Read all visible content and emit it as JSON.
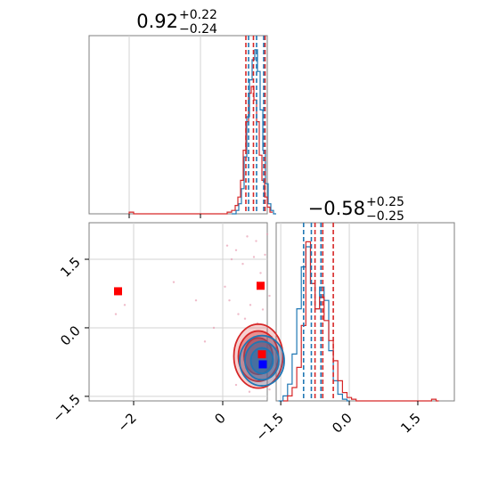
{
  "chart_data": {
    "type": "corner",
    "colors": {
      "series_a": "#1f77b4",
      "series_b": "#d62728",
      "marker_b": "#ff0000",
      "marker_a": "#0000ff"
    },
    "panels": [
      {
        "id": "p0_hist",
        "type": "histogram",
        "title_value": "0.92",
        "title_plus": "+0.22",
        "title_minus": "−0.24",
        "xlim": [
          -3.0,
          1.0
        ],
        "x_ticks": [],
        "y_ticks": [],
        "series": [
          {
            "color": "#1f77b4",
            "quantiles": [
              0.58,
              0.76,
              0.92
            ],
            "bins": [
              [
                0.2,
                0.0
              ],
              [
                0.3,
                0.02
              ],
              [
                0.36,
                0.06
              ],
              [
                0.42,
                0.15
              ],
              [
                0.48,
                0.34
              ],
              [
                0.54,
                0.58
              ],
              [
                0.6,
                0.8
              ],
              [
                0.66,
                0.92
              ],
              [
                0.72,
                0.98
              ],
              [
                0.78,
                0.85
              ],
              [
                0.84,
                0.62
              ],
              [
                0.9,
                0.38
              ],
              [
                0.96,
                0.18
              ],
              [
                1.02,
                0.06
              ],
              [
                1.08,
                0.02
              ],
              [
                1.14,
                0.0
              ]
            ]
          },
          {
            "color": "#d62728",
            "quantiles": [
              0.52,
              0.69,
              0.95
            ],
            "bins": [
              [
                -2.1,
                0.01
              ],
              [
                -2.0,
                0.0
              ],
              [
                0.0,
                0.0
              ],
              [
                0.1,
                0.01
              ],
              [
                0.2,
                0.02
              ],
              [
                0.28,
                0.05
              ],
              [
                0.34,
                0.1
              ],
              [
                0.4,
                0.2
              ],
              [
                0.46,
                0.38
              ],
              [
                0.52,
                0.55
              ],
              [
                0.58,
                0.72
              ],
              [
                0.64,
                0.76
              ],
              [
                0.7,
                0.68
              ],
              [
                0.76,
                0.55
              ],
              [
                0.82,
                0.35
              ],
              [
                0.88,
                0.2
              ],
              [
                0.94,
                0.1
              ],
              [
                1.0,
                0.04
              ],
              [
                1.06,
                0.01
              ]
            ]
          }
        ]
      },
      {
        "id": "p1_hist",
        "type": "histogram",
        "title_value": "−0.58",
        "title_plus": "+0.25",
        "title_minus": "−0.25",
        "xlim": [
          -1.6,
          2.3
        ],
        "x_ticks": [
          {
            "value": -1.5,
            "label": "−1.5"
          },
          {
            "value": 0.0,
            "label": "0.0"
          },
          {
            "value": 1.5,
            "label": "1.5"
          }
        ],
        "y_ticks": [],
        "series": [
          {
            "color": "#1f77b4",
            "quantiles": [
              -1.0,
              -0.83,
              -0.62
            ],
            "bins": [
              [
                -1.55,
                0.0
              ],
              [
                -1.45,
                0.03
              ],
              [
                -1.35,
                0.1
              ],
              [
                -1.25,
                0.28
              ],
              [
                -1.15,
                0.55
              ],
              [
                -1.05,
                0.8
              ],
              [
                -0.95,
                0.92
              ],
              [
                -0.85,
                0.7
              ],
              [
                -0.75,
                0.55
              ],
              [
                -0.65,
                0.68
              ],
              [
                -0.55,
                0.6
              ],
              [
                -0.45,
                0.3
              ],
              [
                -0.35,
                0.12
              ],
              [
                -0.25,
                0.04
              ],
              [
                -0.15,
                0.01
              ],
              [
                -0.05,
                0.0
              ]
            ]
          },
          {
            "color": "#d62728",
            "quantiles": [
              -0.75,
              -0.58,
              -0.35
            ],
            "bins": [
              [
                -1.45,
                0.0
              ],
              [
                -1.35,
                0.03
              ],
              [
                -1.25,
                0.08
              ],
              [
                -1.15,
                0.2
              ],
              [
                -1.05,
                0.45
              ],
              [
                -0.95,
                0.95
              ],
              [
                -0.85,
                0.7
              ],
              [
                -0.75,
                0.55
              ],
              [
                -0.65,
                0.62
              ],
              [
                -0.55,
                0.48
              ],
              [
                -0.45,
                0.36
              ],
              [
                -0.35,
                0.24
              ],
              [
                -0.25,
                0.12
              ],
              [
                -0.15,
                0.05
              ],
              [
                -0.05,
                0.02
              ],
              [
                0.05,
                0.01
              ],
              [
                0.15,
                0.0
              ],
              [
                1.8,
                0.01
              ],
              [
                1.9,
                0.0
              ]
            ]
          }
        ]
      },
      {
        "id": "p10_scatter",
        "type": "contour_scatter",
        "xlim": [
          -3.0,
          1.0
        ],
        "ylim": [
          -1.6,
          2.3
        ],
        "x_ticks": [
          {
            "value": -2.0,
            "label": "−2"
          },
          {
            "value": 0.0,
            "label": "0"
          }
        ],
        "y_ticks": [
          {
            "value": -1.5,
            "label": "−1.5"
          },
          {
            "value": 0.0,
            "label": "0.0"
          },
          {
            "value": 1.5,
            "label": "1.5"
          }
        ],
        "contours": [
          {
            "color": "#d62728",
            "center": [
              0.8,
              -0.62
            ],
            "radii": [
              [
                0.55,
                0.7
              ],
              [
                0.45,
                0.55
              ],
              [
                0.32,
                0.4
              ]
            ]
          },
          {
            "color": "#1f77b4",
            "center": [
              0.88,
              -0.72
            ],
            "radii": [
              [
                0.5,
                0.55
              ],
              [
                0.38,
                0.42
              ],
              [
                0.25,
                0.28
              ]
            ]
          }
        ],
        "markers": [
          {
            "x": -2.35,
            "y": 0.8,
            "color": "#ff0000"
          },
          {
            "x": 0.85,
            "y": 0.92,
            "color": "#ff0000"
          },
          {
            "x": 0.88,
            "y": -0.58,
            "color": "#ff0000"
          },
          {
            "x": 0.9,
            "y": -0.8,
            "color": "#0000ff"
          }
        ],
        "scatter": [
          [
            0.1,
            1.8
          ],
          [
            0.2,
            1.5
          ],
          [
            0.3,
            1.7
          ],
          [
            0.45,
            1.4
          ],
          [
            0.55,
            2.0
          ],
          [
            0.7,
            1.55
          ],
          [
            0.75,
            1.9
          ],
          [
            0.85,
            1.2
          ],
          [
            0.95,
            1.6
          ],
          [
            1.0,
            2.05
          ],
          [
            0.05,
            0.9
          ],
          [
            0.15,
            0.6
          ],
          [
            0.35,
            0.3
          ],
          [
            0.5,
            0.2
          ],
          [
            0.62,
            0.5
          ],
          [
            0.78,
            0.1
          ],
          [
            0.9,
            0.4
          ],
          [
            1.05,
            0.7
          ],
          [
            -0.2,
            0.0
          ],
          [
            -0.6,
            0.6
          ],
          [
            -2.4,
            0.3
          ],
          [
            -2.2,
            0.5
          ],
          [
            -1.1,
            1.0
          ],
          [
            -0.4,
            -0.3
          ],
          [
            1.1,
            -0.2
          ],
          [
            1.15,
            -1.0
          ],
          [
            0.3,
            -1.25
          ],
          [
            1.05,
            -1.35
          ],
          [
            0.6,
            -1.4
          ],
          [
            1.2,
            -0.5
          ]
        ]
      }
    ]
  }
}
